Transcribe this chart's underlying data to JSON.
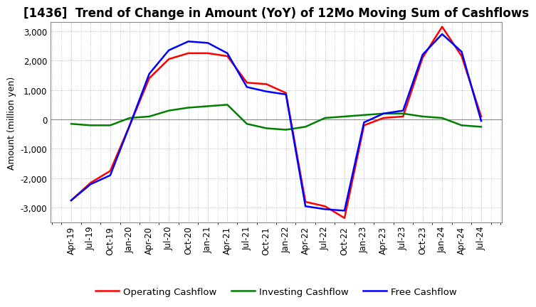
{
  "title": "[1436]  Trend of Change in Amount (YoY) of 12Mo Moving Sum of Cashflows",
  "ylabel": "Amount (million yen)",
  "ylim": [
    -3500,
    3300
  ],
  "yticks": [
    -3000,
    -2000,
    -1000,
    0,
    1000,
    2000,
    3000
  ],
  "x_labels": [
    "Apr-19",
    "Jul-19",
    "Oct-19",
    "Jan-20",
    "Apr-20",
    "Jul-20",
    "Oct-20",
    "Jan-21",
    "Apr-21",
    "Jul-21",
    "Oct-21",
    "Jan-22",
    "Apr-22",
    "Jul-22",
    "Oct-22",
    "Jan-23",
    "Apr-23",
    "Jul-23",
    "Oct-23",
    "Jan-24",
    "Apr-24",
    "Jul-24"
  ],
  "operating_cashflow": [
    -2750,
    -2150,
    -1750,
    -200,
    1400,
    2050,
    2250,
    2250,
    2150,
    1250,
    1200,
    900,
    -2800,
    -2950,
    -3350,
    -200,
    50,
    100,
    2100,
    3150,
    2150,
    100
  ],
  "investing_cashflow": [
    -150,
    -200,
    -200,
    50,
    100,
    300,
    400,
    450,
    500,
    -150,
    -300,
    -350,
    -250,
    50,
    100,
    150,
    200,
    200,
    100,
    50,
    -200,
    -250
  ],
  "free_cashflow": [
    -2750,
    -2200,
    -1900,
    -200,
    1550,
    2350,
    2650,
    2600,
    2250,
    1100,
    950,
    850,
    -2950,
    -3050,
    -3100,
    -100,
    200,
    300,
    2200,
    2900,
    2300,
    -50
  ],
  "operating_color": "#ff0000",
  "investing_color": "#008000",
  "free_color": "#0000ff",
  "grid_color": "#aaaaaa",
  "zeroline_color": "#888888",
  "bg_color": "#ffffff",
  "title_fontsize": 12,
  "label_fontsize": 9,
  "tick_fontsize": 8.5,
  "legend_fontsize": 9.5,
  "linewidth": 1.8
}
